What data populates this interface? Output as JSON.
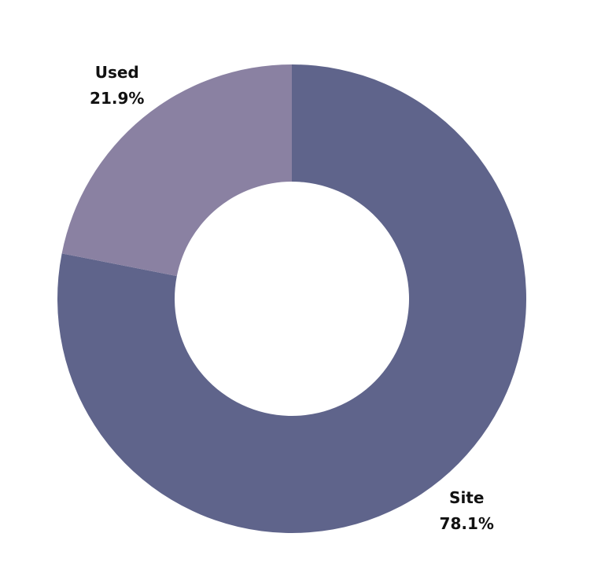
{
  "chart_data": {
    "type": "donut",
    "categories": [
      "Site",
      "Used"
    ],
    "values": [
      78.1,
      21.9
    ],
    "value_labels": [
      "78.1%",
      "21.9%"
    ],
    "colors": [
      "#5f648b",
      "#8a81a2"
    ]
  }
}
